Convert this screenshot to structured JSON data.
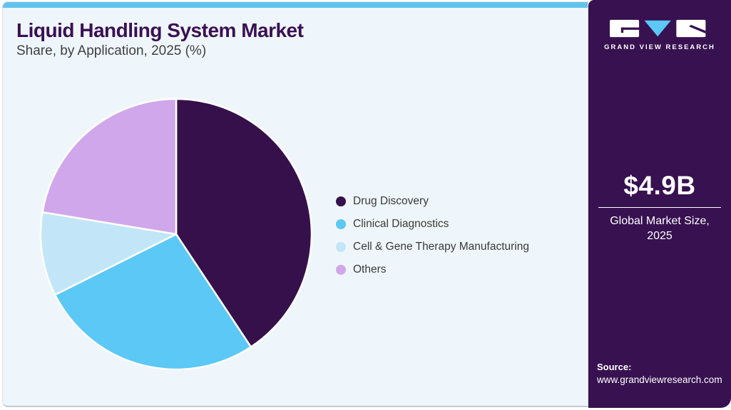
{
  "theme": {
    "accent_blue": "#62c3ee",
    "dark_purple": "#371150",
    "card_bg": "#eff6fb",
    "title_color": "#3a1053"
  },
  "header": {
    "title": "Liquid Handling System Market",
    "subtitle": "Share, by Application, 2025 (%)"
  },
  "chart_data": {
    "type": "pie",
    "title": "Liquid Handling System Market Share, by Application, 2025 (%)",
    "start_angle_deg": 0,
    "direction": "clockwise",
    "legend_position": "right",
    "slices": [
      {
        "label": "Drug Discovery",
        "value": 40.7,
        "color": "#36104b"
      },
      {
        "label": "Clinical Diagnostics",
        "value": 26.9,
        "color": "#5bc8f5"
      },
      {
        "label": "Cell & Gene Therapy Manufacturing",
        "value": 10.0,
        "color": "#c2e6f8"
      },
      {
        "label": "Others",
        "value": 22.4,
        "color": "#d0a7eb"
      }
    ]
  },
  "sidebar": {
    "brand_name": "GRAND VIEW RESEARCH",
    "market_size": {
      "value": "$4.9B",
      "caption_line1": "Global Market Size,",
      "caption_line2": "2025"
    },
    "source": {
      "label": "Source:",
      "url": "www.grandviewresearch.com"
    }
  }
}
